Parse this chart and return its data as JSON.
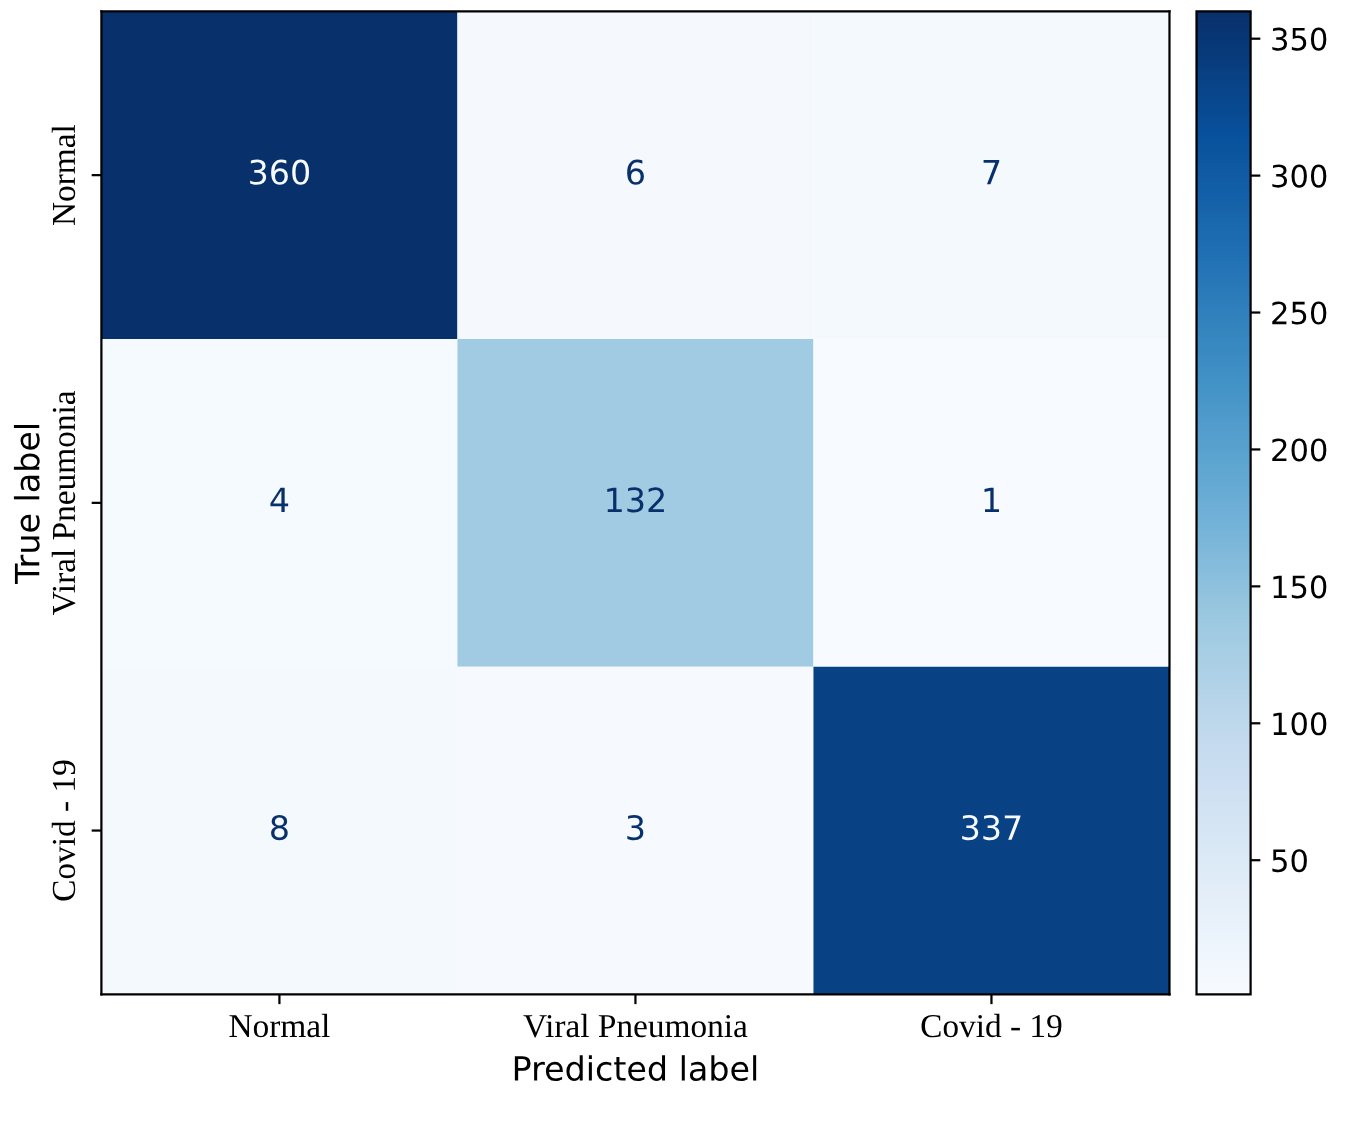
{
  "chart_data": {
    "type": "heatmap",
    "xlabel": "Predicted label",
    "ylabel": "True label",
    "categories": [
      "Normal",
      "Viral Pneumonia",
      "Covid - 19"
    ],
    "y_categories": [
      "Normal",
      "Viral Pneumonia",
      "Covid - 19"
    ],
    "cells": [
      [
        360,
        6,
        7
      ],
      [
        4,
        132,
        1
      ],
      [
        8,
        3,
        337
      ]
    ],
    "data_labels": true,
    "clim": [
      1,
      360
    ],
    "cticks": [
      50,
      100,
      150,
      200,
      250,
      300,
      350
    ]
  }
}
